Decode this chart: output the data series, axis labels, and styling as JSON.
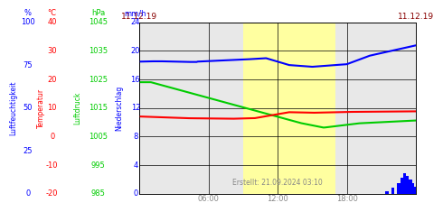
{
  "title_left": "11.12.19",
  "title_right": "11.12.19",
  "created": "Erstellt: 21.09.2024 03:10",
  "x_ticks_labels": [
    "06:00",
    "12:00",
    "18:00"
  ],
  "x_ticks_pos": [
    6,
    12,
    18
  ],
  "yellow_band_start": 9.0,
  "yellow_band_end": 17.0,
  "x_min": 0,
  "x_max": 24,
  "y_hum_min": 0,
  "y_hum_max": 100,
  "y_temp_min": -20,
  "y_temp_max": 40,
  "y_pres_min": 985,
  "y_pres_max": 1045,
  "y_prec_min": 0,
  "y_prec_max": 24,
  "background_main": "#e8e8e8",
  "background_yellow": "#ffffa0",
  "line_blue_color": "#0000ff",
  "line_green_color": "#00cc00",
  "line_red_color": "#ff0000",
  "line_prec_color": "#0000ff",
  "header_labels": [
    "%",
    "°C",
    "hPa",
    "mm/h"
  ],
  "header_colors": [
    "#0000ff",
    "#ff0000",
    "#00cc00",
    "#0000ff"
  ],
  "hum_ticks": [
    0,
    25,
    50,
    75,
    100
  ],
  "temp_ticks": [
    -20,
    -10,
    0,
    10,
    20,
    30,
    40
  ],
  "pres_ticks": [
    985,
    995,
    1005,
    1015,
    1025,
    1035,
    1045
  ],
  "prec_ticks": [
    0,
    4,
    8,
    12,
    16,
    20,
    24
  ],
  "rotated_labels": [
    "Luftfeuchtigkeit",
    "Temperatur",
    "Luftdruck",
    "Niederschlag"
  ],
  "rotated_colors": [
    "#0000ff",
    "#ff0000",
    "#00cc00",
    "#0000ff"
  ],
  "grid_color": "#000000",
  "tick_color": "#888888",
  "date_color": "#880000",
  "created_color": "#888888"
}
